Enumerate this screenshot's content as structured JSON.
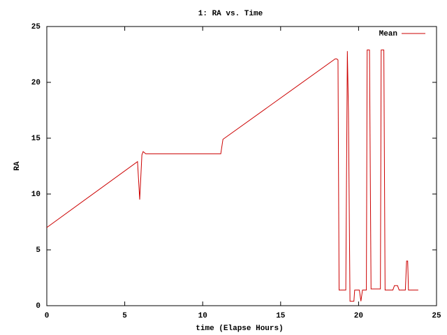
{
  "chart_data": {
    "type": "line",
    "title": "1: RA vs. Time",
    "x_label": "time (Elapse Hours)",
    "y_label": "RA",
    "x": [
      0,
      5.82,
      5.96,
      6.1,
      6.18,
      6.35,
      11.16,
      11.3,
      18.5,
      18.6,
      18.68,
      18.75,
      19.18,
      19.28,
      19.35,
      19.45,
      19.7,
      19.75,
      20.05,
      20.15,
      20.25,
      20.5,
      20.55,
      20.7,
      20.8,
      21.4,
      21.45,
      21.62,
      21.7,
      22.2,
      22.3,
      22.5,
      22.6,
      23.0,
      23.08,
      23.15,
      23.2,
      23.83
    ],
    "series": [
      {
        "name": "Mean",
        "color": "#cc0000",
        "values": [
          7.0,
          12.9,
          9.5,
          13.5,
          13.8,
          13.6,
          13.6,
          14.9,
          22.1,
          22.1,
          22.0,
          1.4,
          1.4,
          22.8,
          17.4,
          0.4,
          0.4,
          1.4,
          1.4,
          0.4,
          1.4,
          1.4,
          22.9,
          22.9,
          1.5,
          1.5,
          22.9,
          22.9,
          1.4,
          1.4,
          1.8,
          1.8,
          1.4,
          1.4,
          4.0,
          4.0,
          1.4,
          1.4
        ]
      }
    ],
    "xlim": [
      0,
      25
    ],
    "ylim": [
      0,
      25
    ],
    "xticks": [
      0,
      5,
      10,
      15,
      20,
      25
    ],
    "yticks": [
      0,
      5,
      10,
      15,
      20,
      25
    ],
    "legend": "top-right"
  }
}
